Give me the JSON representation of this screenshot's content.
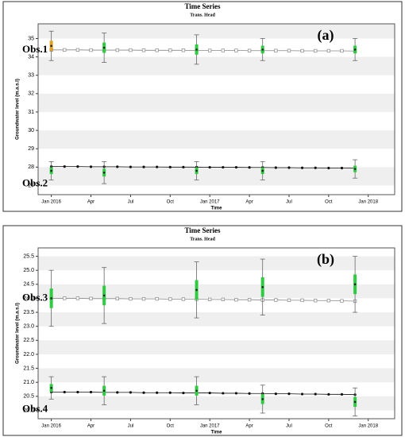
{
  "chart_data": [
    {
      "type": "line",
      "title": "Time Series",
      "subtitle": "Trans. Head",
      "panel_label": "(a)",
      "x_label": "Time",
      "y_label": "Groundwater level (m.a.s.l)",
      "xlim": [
        "2015-12",
        "2018-03"
      ],
      "xticks": [
        {
          "value": "2016-01",
          "label": "Jan 2016"
        },
        {
          "value": "2016-04",
          "label": "Apr"
        },
        {
          "value": "2016-07",
          "label": "Jul"
        },
        {
          "value": "2016-10",
          "label": "Oct"
        },
        {
          "value": "2017-01",
          "label": "Jan 2017"
        },
        {
          "value": "2017-04",
          "label": "Apr"
        },
        {
          "value": "2017-07",
          "label": "Jul"
        },
        {
          "value": "2017-10",
          "label": "Oct"
        },
        {
          "value": "2018-01",
          "label": "Jan 2018"
        }
      ],
      "ylim": [
        26.5,
        35.8
      ],
      "yticks": [
        27,
        28,
        29,
        30,
        31,
        32,
        33,
        34,
        35
      ],
      "grid": true,
      "series": [
        {
          "name": "Obs.1",
          "color": "#888888",
          "marker": "square",
          "x": [
            "2016-01",
            "2016-02",
            "2016-03",
            "2016-04",
            "2016-05",
            "2016-06",
            "2016-07",
            "2016-08",
            "2016-09",
            "2016-10",
            "2016-11",
            "2016-12",
            "2017-01",
            "2017-02",
            "2017-03",
            "2017-04",
            "2017-05",
            "2017-06",
            "2017-07",
            "2017-08",
            "2017-09",
            "2017-10",
            "2017-11",
            "2017-12"
          ],
          "values": [
            34.38,
            34.38,
            34.38,
            34.37,
            34.37,
            34.37,
            34.37,
            34.36,
            34.36,
            34.36,
            34.36,
            34.35,
            34.35,
            34.35,
            34.35,
            34.34,
            34.34,
            34.34,
            34.34,
            34.33,
            34.33,
            34.33,
            34.33,
            34.32
          ],
          "obs_x": [
            "2016-01",
            "2016-05",
            "2016-12",
            "2017-05",
            "2017-12"
          ],
          "obs_values": [
            34.6,
            34.5,
            34.4,
            34.4,
            34.4
          ],
          "obs_errors": [
            0.8,
            0.8,
            0.8,
            0.6,
            0.6
          ]
        },
        {
          "name": "Obs.2",
          "color": "#111111",
          "marker": "circle",
          "x": [
            "2016-01",
            "2016-02",
            "2016-03",
            "2016-04",
            "2016-05",
            "2016-06",
            "2016-07",
            "2016-08",
            "2016-09",
            "2016-10",
            "2016-11",
            "2016-12",
            "2017-01",
            "2017-02",
            "2017-03",
            "2017-04",
            "2017-05",
            "2017-06",
            "2017-07",
            "2017-08",
            "2017-09",
            "2017-10",
            "2017-11",
            "2017-12"
          ],
          "values": [
            28.03,
            28.03,
            28.03,
            28.02,
            28.02,
            28.02,
            28.01,
            28.01,
            28.01,
            28.0,
            28.0,
            28.0,
            27.99,
            27.99,
            27.99,
            27.98,
            27.98,
            27.97,
            27.97,
            27.96,
            27.96,
            27.95,
            27.95,
            27.94
          ],
          "obs_x": [
            "2016-01",
            "2016-05",
            "2016-12",
            "2017-05",
            "2017-12"
          ],
          "obs_values": [
            27.8,
            27.7,
            27.8,
            27.8,
            27.9
          ],
          "obs_errors": [
            0.5,
            0.6,
            0.5,
            0.5,
            0.5
          ]
        }
      ]
    },
    {
      "type": "line",
      "title": "Time Series",
      "subtitle": "Trans. Head",
      "panel_label": "(b)",
      "x_label": "Time",
      "y_label": "Groundwater level (m.a.s.l)",
      "xlim": [
        "2015-12",
        "2018-03"
      ],
      "xticks": [
        {
          "value": "2016-01",
          "label": "Jan 2016"
        },
        {
          "value": "2016-04",
          "label": "Apr"
        },
        {
          "value": "2016-07",
          "label": "Jul"
        },
        {
          "value": "2016-10",
          "label": "Oct"
        },
        {
          "value": "2017-01",
          "label": "Jan 2017"
        },
        {
          "value": "2017-04",
          "label": "Apr"
        },
        {
          "value": "2017-07",
          "label": "Jul"
        },
        {
          "value": "2017-10",
          "label": "Oct"
        },
        {
          "value": "2018-01",
          "label": "Jan 2018"
        }
      ],
      "ylim": [
        19.7,
        25.8
      ],
      "yticks": [
        {
          "value": 20,
          "label": "20.0"
        },
        20.5,
        {
          "value": 21,
          "label": "21.0"
        },
        21.5,
        {
          "value": 22,
          "label": "22.0"
        },
        22.5,
        {
          "value": 23,
          "label": "23.0"
        },
        23.5,
        {
          "value": 24,
          "label": "24.0"
        },
        24.5,
        {
          "value": 25,
          "label": "25.0"
        },
        25.5
      ],
      "grid": true,
      "series": [
        {
          "name": "Obs.3",
          "color": "#888888",
          "marker": "square",
          "x": [
            "2016-01",
            "2016-02",
            "2016-03",
            "2016-04",
            "2016-05",
            "2016-06",
            "2016-07",
            "2016-08",
            "2016-09",
            "2016-10",
            "2016-11",
            "2016-12",
            "2017-01",
            "2017-02",
            "2017-03",
            "2017-04",
            "2017-05",
            "2017-06",
            "2017-07",
            "2017-08",
            "2017-09",
            "2017-10",
            "2017-11",
            "2017-12"
          ],
          "values": [
            24.0,
            24.0,
            24.0,
            23.99,
            23.99,
            23.99,
            23.98,
            23.98,
            23.98,
            23.97,
            23.97,
            23.97,
            23.96,
            23.96,
            23.95,
            23.95,
            23.94,
            23.94,
            23.93,
            23.93,
            23.92,
            23.92,
            23.91,
            23.9
          ],
          "obs_x": [
            "2016-01",
            "2016-05",
            "2016-12",
            "2017-05",
            "2017-12"
          ],
          "obs_values": [
            24.0,
            24.1,
            24.3,
            24.4,
            24.5
          ],
          "obs_errors": [
            1.0,
            1.0,
            1.0,
            1.0,
            1.0
          ]
        },
        {
          "name": "Obs.4",
          "color": "#111111",
          "marker": "circle",
          "x": [
            "2016-01",
            "2016-02",
            "2016-03",
            "2016-04",
            "2016-05",
            "2016-06",
            "2016-07",
            "2016-08",
            "2016-09",
            "2016-10",
            "2016-11",
            "2016-12",
            "2017-01",
            "2017-02",
            "2017-03",
            "2017-04",
            "2017-05",
            "2017-06",
            "2017-07",
            "2017-08",
            "2017-09",
            "2017-10",
            "2017-11",
            "2017-12"
          ],
          "values": [
            20.65,
            20.65,
            20.65,
            20.65,
            20.64,
            20.64,
            20.64,
            20.63,
            20.63,
            20.63,
            20.62,
            20.62,
            20.62,
            20.61,
            20.61,
            20.6,
            20.6,
            20.59,
            20.59,
            20.58,
            20.58,
            20.57,
            20.57,
            20.56
          ],
          "obs_x": [
            "2016-01",
            "2016-05",
            "2016-12",
            "2017-05",
            "2017-12"
          ],
          "obs_values": [
            20.8,
            20.7,
            20.7,
            20.4,
            20.3
          ],
          "obs_errors": [
            0.4,
            0.5,
            0.5,
            0.5,
            0.5
          ]
        }
      ]
    }
  ]
}
